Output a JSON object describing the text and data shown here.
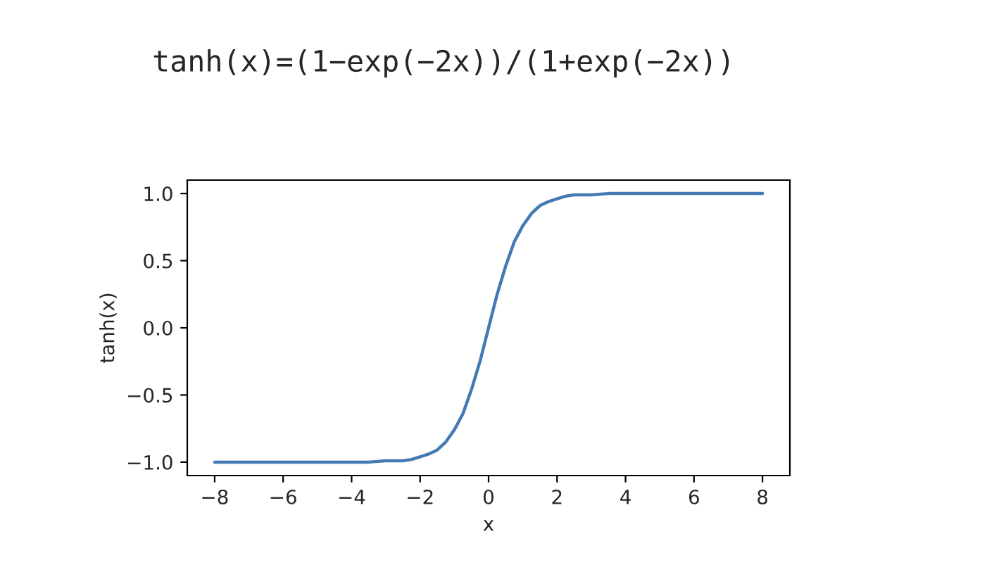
{
  "chart_data": {
    "type": "line",
    "title": "tanh(x)=(1−exp(−2x))/(1+exp(−2x))",
    "xlabel": "x",
    "ylabel": "tanh(x)",
    "series": [
      {
        "color": "#4479b4",
        "x": [
          -8,
          -7,
          -6,
          -5,
          -4,
          -3.5,
          -3,
          -2.75,
          -2.5,
          -2.25,
          -2,
          -1.75,
          -1.5,
          -1.25,
          -1,
          -0.75,
          -0.5,
          -0.25,
          0,
          0.25,
          0.5,
          0.75,
          1,
          1.25,
          1.5,
          1.75,
          2,
          2.25,
          2.5,
          2.75,
          3,
          3.5,
          4,
          5,
          6,
          7,
          8
        ],
        "values": [
          -1.0,
          -1.0,
          -1.0,
          -1.0,
          -1.0,
          -1.0,
          -0.99,
          -0.99,
          -0.99,
          -0.98,
          -0.96,
          -0.94,
          -0.91,
          -0.85,
          -0.76,
          -0.64,
          -0.46,
          -0.25,
          0.0,
          0.25,
          0.46,
          0.64,
          0.76,
          0.85,
          0.91,
          0.94,
          0.96,
          0.98,
          0.99,
          0.99,
          0.99,
          1.0,
          1.0,
          1.0,
          1.0,
          1.0,
          1.0
        ]
      }
    ],
    "xlim": [
      -8.8,
      8.8
    ],
    "ylim": [
      -1.1,
      1.1
    ],
    "xticks": [
      {
        "value": -8,
        "label": "−8"
      },
      {
        "value": -6,
        "label": "−6"
      },
      {
        "value": -4,
        "label": "−4"
      },
      {
        "value": -2,
        "label": "−2"
      },
      0,
      2,
      4,
      6,
      8
    ],
    "yticks": [
      {
        "value": -1.0,
        "label": "−1.0"
      },
      {
        "value": -0.5,
        "label": "−0.5"
      },
      {
        "value": 0.0,
        "label": "0.0"
      },
      {
        "value": 0.5,
        "label": "0.5"
      },
      {
        "value": 1.0,
        "label": "1.0"
      }
    ]
  }
}
